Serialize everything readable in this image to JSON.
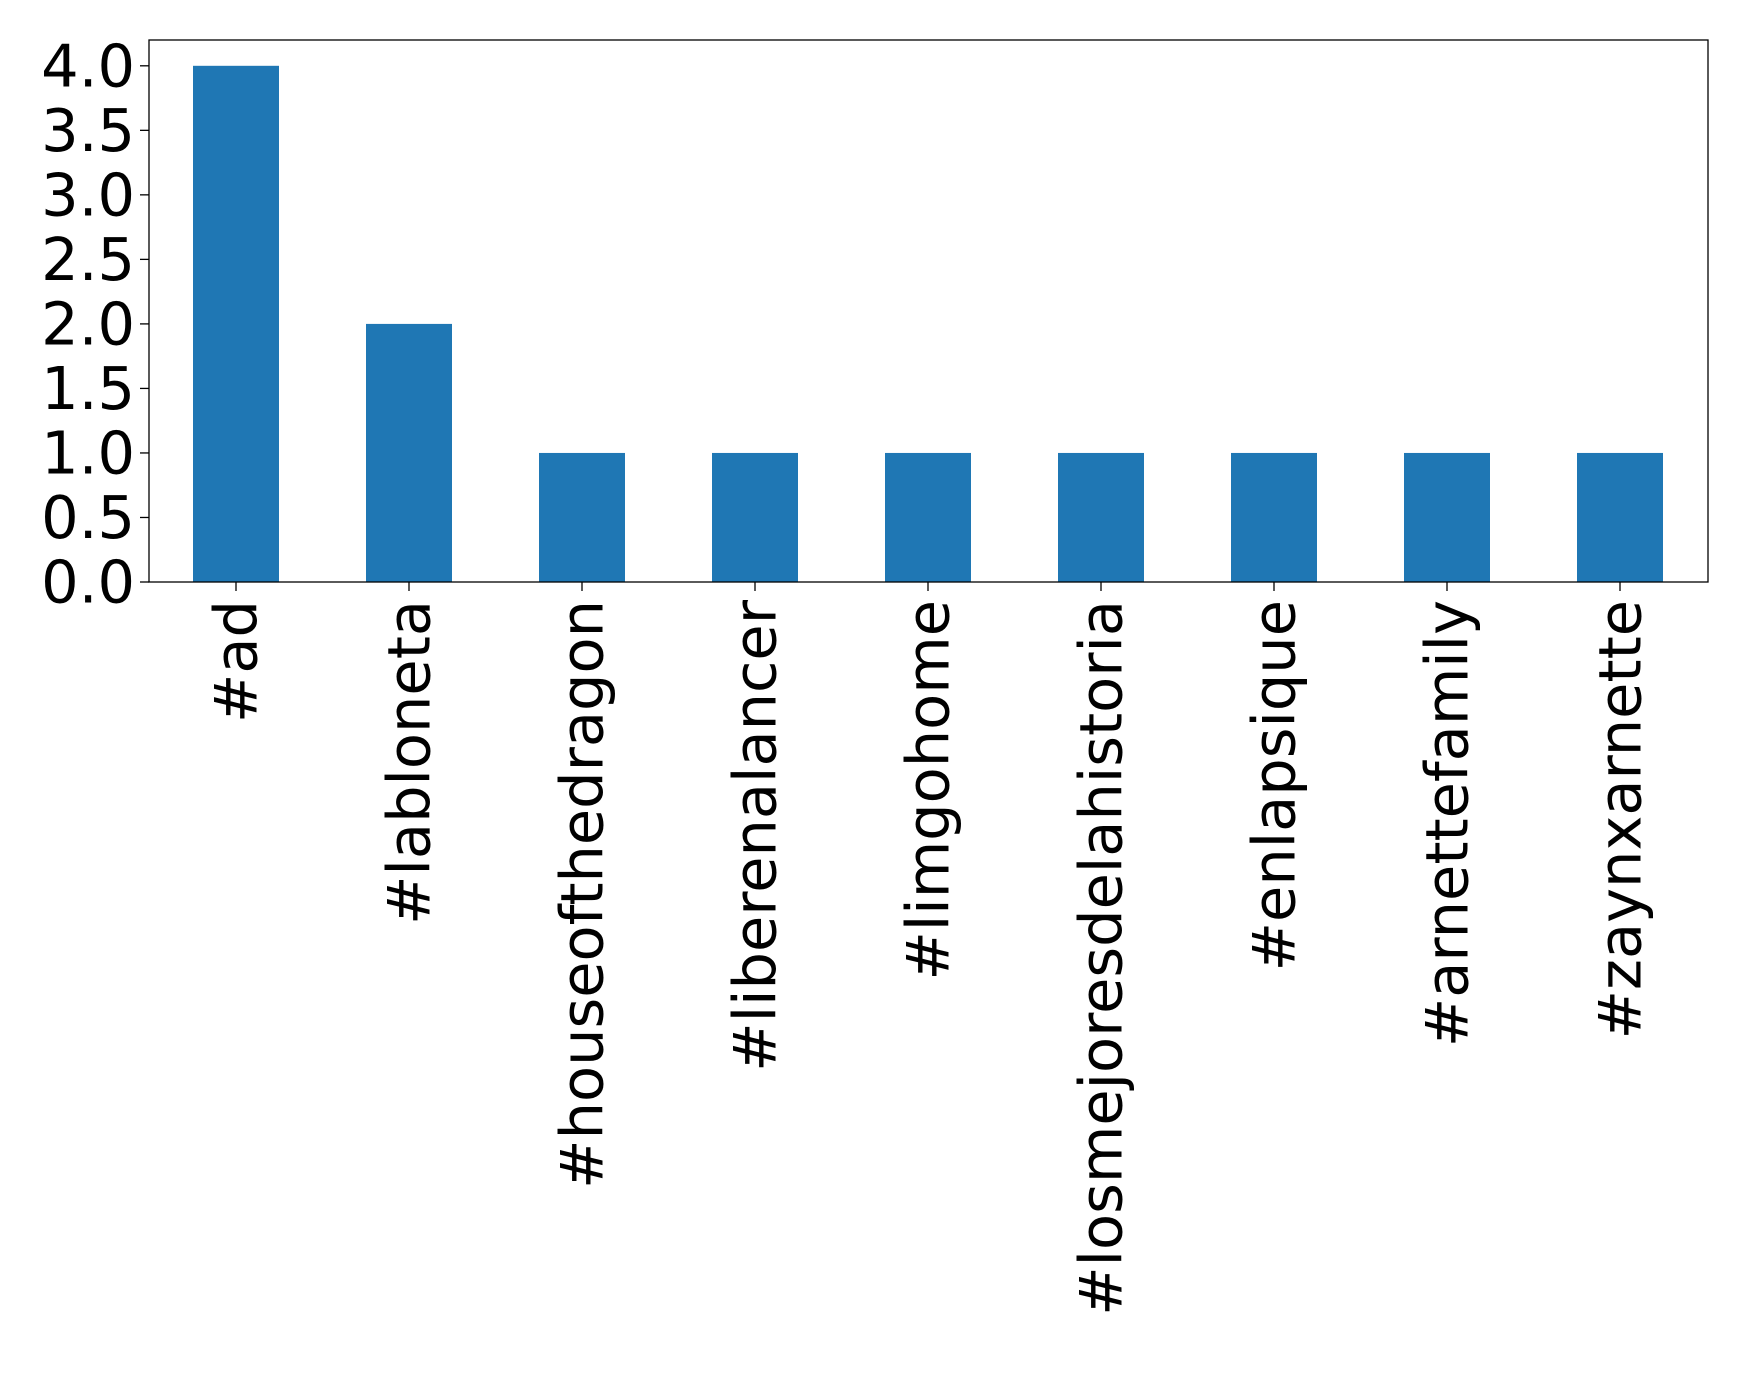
{
  "chart_data": {
    "type": "bar",
    "title": "",
    "xlabel": "",
    "ylabel": "",
    "categories": [
      "#ad",
      "#labloneta",
      "#houseofthedragon",
      "#liberenalancer",
      "#limgohome",
      "#losmejoresdelahistoria",
      "#enlapsique",
      "#arnettefamily",
      "#zaynxarnette"
    ],
    "values": [
      4,
      2,
      1,
      1,
      1,
      1,
      1,
      1,
      1
    ],
    "ylim": [
      0,
      4.2
    ],
    "yticks": [
      0.0,
      0.5,
      1.0,
      1.5,
      2.0,
      2.5,
      3.0,
      3.5,
      4.0
    ],
    "ytick_labels": [
      "0.0",
      "0.5",
      "1.0",
      "1.5",
      "2.0",
      "2.5",
      "3.0",
      "3.5",
      "4.0"
    ],
    "grid": false,
    "legend": "none",
    "bar_color": "#1f77b4"
  }
}
